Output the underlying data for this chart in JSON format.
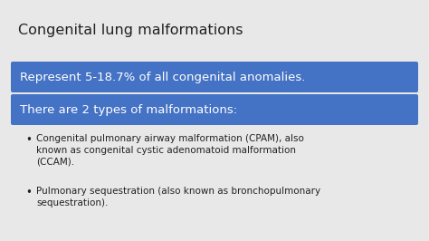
{
  "background_color": "#e8e8e8",
  "title": "Congenital lung malformations",
  "title_color": "#222222",
  "title_fontsize": 11.5,
  "banner1_text": "Represent 5-18.7% of all congenital anomalies.",
  "banner1_color": "#4472C4",
  "banner1_text_color": "#ffffff",
  "banner1_fontsize": 9.5,
  "banner2_text": "There are 2 types of malformations:",
  "banner2_color": "#4472C4",
  "banner2_text_color": "#ffffff",
  "banner2_fontsize": 9.5,
  "bullet1_line1": "Congenital pulmonary airway malformation (CPAM), also",
  "bullet1_line2": "known as congenital cystic adenomatoid malformation",
  "bullet1_line3": "(CCAM).",
  "bullet2_line1": "Pulmonary sequestration (also known as bronchopulmonary",
  "bullet2_line2": "sequestration).",
  "bullet_color": "#222222",
  "bullet_fontsize": 7.5
}
